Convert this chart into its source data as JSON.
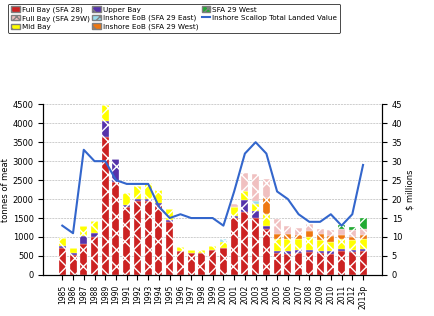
{
  "years": [
    "1985",
    "1986",
    "1987",
    "1988",
    "1989",
    "1990",
    "1991",
    "1992",
    "1993",
    "1994",
    "1995",
    "1996",
    "1997",
    "1998",
    "1999",
    "2000",
    "2001",
    "2002",
    "2003",
    "2004",
    "2005",
    "2006",
    "2007",
    "2008",
    "2009",
    "2010",
    "2011",
    "2012",
    "2013p"
  ],
  "full_bay_28": [
    720,
    530,
    820,
    1000,
    3650,
    2450,
    1800,
    1950,
    1950,
    1850,
    1400,
    620,
    580,
    580,
    650,
    700,
    1500,
    1650,
    1500,
    1200,
    580,
    560,
    590,
    610,
    580,
    560,
    630,
    600,
    630
  ],
  "mid_bay": [
    200,
    120,
    280,
    330,
    430,
    0,
    320,
    350,
    430,
    350,
    300,
    120,
    80,
    90,
    110,
    180,
    250,
    230,
    200,
    320,
    320,
    320,
    300,
    320,
    280,
    260,
    260,
    260,
    260
  ],
  "upper_bay": [
    50,
    50,
    200,
    100,
    400,
    600,
    50,
    50,
    50,
    50,
    50,
    0,
    0,
    0,
    0,
    0,
    50,
    330,
    180,
    80,
    50,
    60,
    60,
    60,
    60,
    60,
    60,
    60,
    60
  ],
  "inshore_eob_east": [
    0,
    0,
    0,
    0,
    0,
    0,
    0,
    0,
    0,
    0,
    0,
    0,
    0,
    0,
    0,
    70,
    0,
    0,
    70,
    0,
    0,
    0,
    0,
    0,
    0,
    0,
    0,
    0,
    0
  ],
  "inshore_eob_west": [
    0,
    0,
    0,
    0,
    0,
    0,
    0,
    0,
    0,
    0,
    0,
    0,
    0,
    0,
    0,
    0,
    0,
    0,
    0,
    420,
    130,
    130,
    110,
    180,
    160,
    140,
    90,
    90,
    90
  ],
  "full_bay_29w": [
    0,
    0,
    0,
    0,
    0,
    0,
    0,
    0,
    0,
    0,
    0,
    0,
    0,
    0,
    0,
    0,
    80,
    480,
    720,
    500,
    400,
    220,
    180,
    160,
    130,
    160,
    180,
    180,
    180
  ],
  "sfa29_west": [
    0,
    0,
    0,
    0,
    0,
    0,
    0,
    0,
    0,
    0,
    0,
    0,
    0,
    0,
    0,
    0,
    0,
    0,
    0,
    0,
    0,
    0,
    0,
    0,
    0,
    0,
    90,
    70,
    280
  ],
  "landed_value": [
    13,
    11,
    33,
    30,
    30,
    25,
    24,
    24,
    24,
    18,
    15,
    16,
    15,
    15,
    15,
    13,
    22,
    32,
    35,
    32,
    22,
    20,
    16,
    14,
    14,
    16,
    13,
    16,
    29
  ],
  "color_full_bay_28": "#cc2222",
  "color_full_bay_29w": "#f0c0c0",
  "color_mid_bay": "#ffff00",
  "color_upper_bay": "#5533aa",
  "color_inshore_eob_east": "#99ddee",
  "color_inshore_eob_west": "#ee7711",
  "color_sfa29_west": "#22aa33",
  "color_line": "#3366cc",
  "ylabel_left": "tonnes of meat",
  "ylabel_right": "$ millions",
  "ylim_left": [
    0,
    4500
  ],
  "ylim_right": [
    0,
    45
  ],
  "yticks_left": [
    0,
    500,
    1000,
    1500,
    2000,
    2500,
    3000,
    3500,
    4000,
    4500
  ],
  "yticks_right": [
    0,
    5,
    10,
    15,
    20,
    25,
    30,
    35,
    40,
    45
  ],
  "legend_labels": [
    "Full Bay (SFA 28)",
    "Full Bay (SFA 29W)",
    "Mid Bay",
    "Upper Bay",
    "Inshore EoB (SFA 29 East)",
    "Inshore EoB (SFA 29 West)",
    "SFA 29 West",
    "Inshore Scallop Total Landed Value"
  ],
  "bg_color": "#ffffff"
}
